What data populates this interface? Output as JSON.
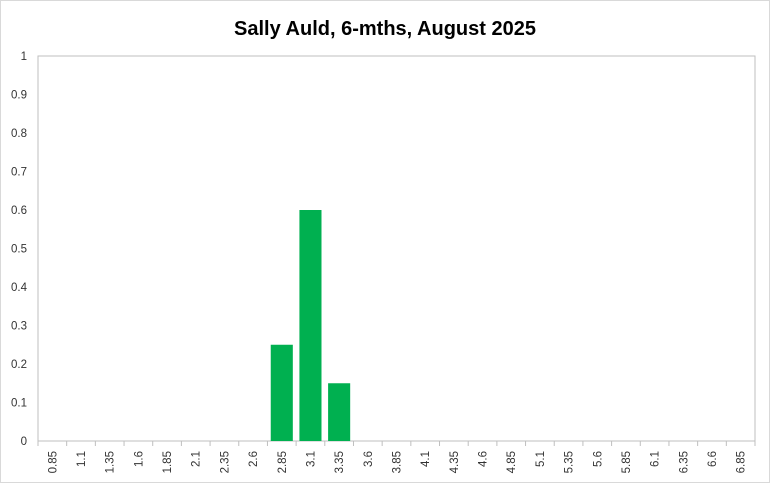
{
  "chart_data": {
    "type": "bar",
    "title": "Sally Auld, 6-mths, August 2025",
    "xlabel": "",
    "ylabel": "",
    "categories": [
      "0.85",
      "1.1",
      "1.35",
      "1.6",
      "1.85",
      "2.1",
      "2.35",
      "2.6",
      "2.85",
      "3.1",
      "3.35",
      "3.6",
      "3.85",
      "4.1",
      "4.35",
      "4.6",
      "4.85",
      "5.1",
      "5.35",
      "5.6",
      "5.85",
      "6.1",
      "6.35",
      "6.6",
      "6.85"
    ],
    "values": [
      0,
      0,
      0,
      0,
      0,
      0,
      0,
      0,
      0.25,
      0.6,
      0.15,
      0,
      0,
      0,
      0,
      0,
      0,
      0,
      0,
      0,
      0,
      0,
      0,
      0,
      0
    ],
    "ylim": [
      0,
      1
    ],
    "yticks": [
      "0",
      "0.1",
      "0.2",
      "0.3",
      "0.4",
      "0.5",
      "0.6",
      "0.7",
      "0.8",
      "0.9",
      "1"
    ],
    "bar_color": "#00b050",
    "grid": false,
    "legend": "none"
  }
}
